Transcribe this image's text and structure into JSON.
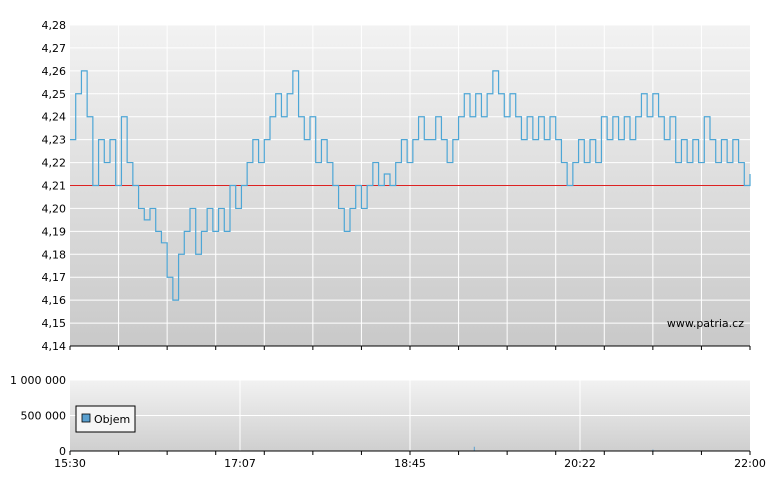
{
  "chart_data": [
    {
      "type": "line",
      "ylim": [
        4.14,
        4.28
      ],
      "yticks": [
        "4,14",
        "4,15",
        "4,16",
        "4,17",
        "4,18",
        "4,19",
        "4,20",
        "4,21",
        "4,22",
        "4,23",
        "4,24",
        "4,25",
        "4,26",
        "4,27",
        "4,28"
      ],
      "reference_line": {
        "value": 4.21,
        "color": "#dd2222"
      },
      "line_color": "#4da6d6",
      "grid": true,
      "watermark": "www.patria.cz",
      "series": [
        {
          "values": [
            4.23,
            4.25,
            4.26,
            4.24,
            4.21,
            4.23,
            4.22,
            4.23,
            4.21,
            4.24,
            4.22,
            4.21,
            4.2,
            4.195,
            4.2,
            4.19,
            4.185,
            4.17,
            4.16,
            4.18,
            4.19,
            4.2,
            4.18,
            4.19,
            4.2,
            4.19,
            4.2,
            4.19,
            4.21,
            4.2,
            4.21,
            4.22,
            4.23,
            4.22,
            4.23,
            4.24,
            4.25,
            4.24,
            4.25,
            4.26,
            4.24,
            4.23,
            4.24,
            4.22,
            4.23,
            4.22,
            4.21,
            4.2,
            4.19,
            4.2,
            4.21,
            4.2,
            4.21,
            4.22,
            4.21,
            4.215,
            4.21,
            4.22,
            4.23,
            4.22,
            4.23,
            4.24,
            4.23,
            4.23,
            4.24,
            4.23,
            4.22,
            4.23,
            4.24,
            4.25,
            4.24,
            4.25,
            4.24,
            4.25,
            4.26,
            4.25,
            4.24,
            4.25,
            4.24,
            4.23,
            4.24,
            4.23,
            4.24,
            4.23,
            4.24,
            4.23,
            4.22,
            4.21,
            4.22,
            4.23,
            4.22,
            4.23,
            4.22,
            4.24,
            4.23,
            4.24,
            4.23,
            4.24,
            4.23,
            4.24,
            4.25,
            4.24,
            4.25,
            4.24,
            4.23,
            4.24,
            4.22,
            4.23,
            4.22,
            4.23,
            4.22,
            4.24,
            4.23,
            4.22,
            4.23,
            4.22,
            4.23,
            4.22,
            4.21,
            4.215
          ]
        }
      ]
    },
    {
      "type": "bar",
      "ylim": [
        0,
        1000000
      ],
      "yticks": [
        "0",
        "500 000",
        "1 000 000"
      ],
      "legend": "Objem",
      "xticks": [
        "15:30",
        "17:07",
        "18:45",
        "20:22",
        "22:00"
      ],
      "grid": true,
      "bar_color": "#5aa0d0",
      "values": [
        8000,
        4000,
        6000,
        3000,
        5000,
        7000,
        4000,
        3000,
        6000,
        5000,
        9000,
        4000,
        3000,
        5000,
        6000,
        4000,
        3000,
        5000,
        4000,
        6000,
        5000,
        4000,
        3000,
        7000,
        5000,
        4000,
        6000,
        3000,
        5000,
        4000,
        6000,
        5000,
        4000,
        3000,
        5000,
        4000,
        6000,
        4000,
        5000,
        3000,
        4000,
        5000,
        6000,
        4000,
        3000,
        5000,
        4000,
        60000,
        5000,
        4000,
        3000,
        5000,
        4000,
        6000,
        5000,
        4000,
        3000,
        5000,
        6000,
        4000,
        3000,
        5000,
        4000,
        6000,
        5000,
        4000,
        3000,
        5000,
        20000,
        4000,
        3000,
        5000,
        4000,
        6000,
        5000,
        4000,
        3000,
        5000,
        4000,
        6000
      ]
    }
  ]
}
